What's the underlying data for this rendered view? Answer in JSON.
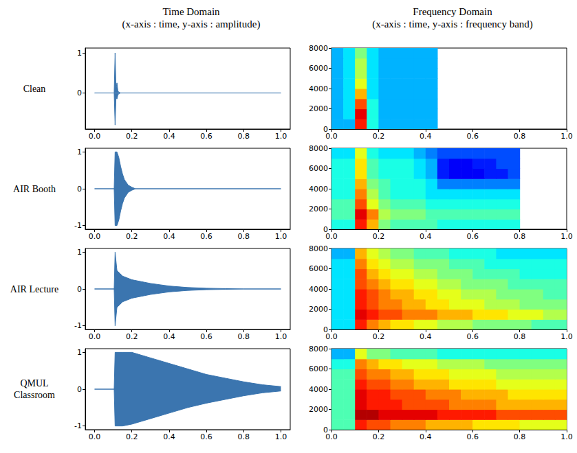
{
  "column_titles": [
    {
      "title": "Time Domain",
      "subtitle": "(x-axis : time, y-axis : amplitude)"
    },
    {
      "title": "Frequency Domain",
      "subtitle": "(x-axis : time, y-axis : frequency band)"
    }
  ],
  "row_labels": [
    "Clean",
    "AIR Booth",
    "AIR Lecture",
    "QMUL Classroom"
  ],
  "chart_data": [
    {
      "type": "line",
      "color": "#3b75af",
      "grid": false,
      "x": [
        0,
        0.1,
        0.105,
        0.11,
        0.115,
        0.12,
        0.125,
        0.13,
        0.14,
        1.0
      ],
      "envelope_upper": [
        0,
        0,
        0,
        1,
        0.1,
        0.25,
        0.05,
        0.02,
        0,
        0
      ],
      "envelope_lower": [
        0,
        0,
        0,
        -0.8,
        -0.1,
        -0.15,
        -0.05,
        -0.02,
        0,
        0
      ],
      "xlim": [
        -0.05,
        1.05
      ],
      "xticks": [
        {
          "value": 0,
          "label": "0.0"
        },
        0.2,
        0.4,
        0.6,
        0.8,
        {
          "value": 1,
          "label": "1.0"
        }
      ],
      "ylim": [
        -0.9,
        1.12
      ],
      "yticks": [
        0,
        1
      ]
    },
    {
      "type": "heatmap",
      "color": "jet",
      "grid": false,
      "zlim": [
        0,
        1
      ],
      "x_edges": [
        0,
        0.05,
        0.1,
        0.15,
        0.2,
        0.25,
        0.3,
        0.35,
        0.4,
        0.45,
        0.5,
        0.55,
        0.6,
        0.65,
        0.7,
        0.75,
        0.8,
        0.85,
        0.9,
        0.95,
        1.0
      ],
      "y_edges": [
        0,
        1000,
        2000,
        3000,
        4000,
        5000,
        6000,
        7000,
        8000
      ],
      "cells": [
        [
          0.3,
          0.3,
          0.85,
          0.4,
          0.3,
          0.3,
          0.3,
          0.3,
          0.3,
          null,
          null,
          null,
          null,
          null,
          null,
          null,
          null,
          null,
          null,
          null
        ],
        [
          0.3,
          0.35,
          0.9,
          0.4,
          0.3,
          0.3,
          0.3,
          0.3,
          0.3,
          null,
          null,
          null,
          null,
          null,
          null,
          null,
          null,
          null,
          null,
          null
        ],
        [
          0.3,
          0.35,
          0.8,
          0.4,
          0.3,
          0.3,
          0.3,
          0.3,
          0.3,
          null,
          null,
          null,
          null,
          null,
          null,
          null,
          null,
          null,
          null,
          null
        ],
        [
          0.3,
          0.35,
          0.7,
          0.35,
          0.3,
          0.3,
          0.3,
          0.3,
          0.3,
          null,
          null,
          null,
          null,
          null,
          null,
          null,
          null,
          null,
          null,
          null
        ],
        [
          0.3,
          0.35,
          0.6,
          0.35,
          0.3,
          0.3,
          0.3,
          0.3,
          0.3,
          null,
          null,
          null,
          null,
          null,
          null,
          null,
          null,
          null,
          null,
          null
        ],
        [
          0.3,
          0.35,
          0.55,
          0.35,
          0.3,
          0.3,
          0.3,
          0.3,
          0.3,
          null,
          null,
          null,
          null,
          null,
          null,
          null,
          null,
          null,
          null,
          null
        ],
        [
          0.3,
          0.35,
          0.55,
          0.35,
          0.3,
          0.3,
          0.3,
          0.3,
          0.3,
          null,
          null,
          null,
          null,
          null,
          null,
          null,
          null,
          null,
          null,
          null
        ],
        [
          0.3,
          0.35,
          0.5,
          0.35,
          0.3,
          0.3,
          0.3,
          0.3,
          0.3,
          null,
          null,
          null,
          null,
          null,
          null,
          null,
          null,
          null,
          null,
          null
        ]
      ],
      "xlim": [
        0,
        1
      ],
      "xticks": [
        {
          "value": 0,
          "label": "0.0"
        },
        0.2,
        0.4,
        0.6,
        0.8,
        {
          "value": 1,
          "label": "1.0"
        }
      ],
      "ylim": [
        0,
        8000
      ],
      "yticks": [
        0,
        2000,
        4000,
        6000,
        8000
      ]
    },
    {
      "type": "line",
      "color": "#3b75af",
      "grid": false,
      "x": [
        0,
        0.105,
        0.11,
        0.12,
        0.13,
        0.14,
        0.15,
        0.16,
        0.18,
        0.2,
        0.22,
        1.0
      ],
      "envelope_upper": [
        0,
        0,
        1,
        1,
        0.85,
        0.6,
        0.4,
        0.25,
        0.1,
        0.04,
        0,
        0
      ],
      "envelope_lower": [
        0,
        0,
        -1,
        -1,
        -0.85,
        -0.6,
        -0.4,
        -0.25,
        -0.1,
        -0.04,
        0,
        0
      ],
      "xlim": [
        -0.05,
        1.05
      ],
      "xticks": [
        {
          "value": 0,
          "label": "0.0"
        },
        0.2,
        0.4,
        0.6,
        0.8,
        {
          "value": 1,
          "label": "1.0"
        }
      ],
      "ylim": [
        -1.1,
        1.1
      ],
      "yticks": [
        -1,
        0,
        1
      ]
    },
    {
      "type": "heatmap",
      "color": "jet",
      "grid": false,
      "zlim": [
        0,
        1
      ],
      "x_edges": [
        0,
        0.05,
        0.1,
        0.15,
        0.2,
        0.25,
        0.3,
        0.35,
        0.4,
        0.45,
        0.5,
        0.55,
        0.6,
        0.65,
        0.7,
        0.75,
        0.8,
        0.85,
        0.9,
        0.95,
        1.0
      ],
      "y_edges": [
        0,
        1000,
        2000,
        3000,
        4000,
        5000,
        6000,
        7000,
        8000
      ],
      "cells": [
        [
          0.4,
          0.4,
          0.85,
          0.7,
          0.5,
          0.45,
          0.45,
          0.45,
          0.45,
          0.4,
          0.4,
          0.4,
          0.4,
          0.4,
          0.4,
          0.4,
          null,
          null,
          null,
          null
        ],
        [
          0.45,
          0.45,
          0.9,
          0.75,
          0.55,
          0.5,
          0.5,
          0.5,
          0.45,
          0.45,
          0.45,
          0.45,
          0.45,
          0.45,
          0.45,
          0.45,
          null,
          null,
          null,
          null
        ],
        [
          0.45,
          0.45,
          0.8,
          0.6,
          0.5,
          0.45,
          0.45,
          0.45,
          0.4,
          0.4,
          0.4,
          0.4,
          0.4,
          0.4,
          0.4,
          0.4,
          null,
          null,
          null,
          null
        ],
        [
          0.4,
          0.4,
          0.75,
          0.55,
          0.45,
          0.4,
          0.4,
          0.4,
          0.35,
          0.35,
          0.35,
          0.35,
          0.35,
          0.35,
          0.35,
          0.35,
          null,
          null,
          null,
          null
        ],
        [
          0.4,
          0.4,
          0.7,
          0.5,
          0.45,
          0.4,
          0.4,
          0.4,
          0.35,
          0.25,
          0.25,
          0.25,
          0.25,
          0.25,
          0.25,
          0.25,
          null,
          null,
          null,
          null
        ],
        [
          0.4,
          0.4,
          0.65,
          0.45,
          0.4,
          0.4,
          0.4,
          0.35,
          0.3,
          0.15,
          0.12,
          0.12,
          0.12,
          0.15,
          0.15,
          0.2,
          null,
          null,
          null,
          null
        ],
        [
          0.4,
          0.4,
          0.65,
          0.45,
          0.4,
          0.4,
          0.4,
          0.35,
          0.3,
          0.15,
          0.12,
          0.12,
          0.15,
          0.15,
          0.2,
          0.2,
          null,
          null,
          null,
          null
        ],
        [
          0.35,
          0.35,
          0.6,
          0.4,
          0.35,
          0.35,
          0.35,
          0.3,
          0.25,
          0.2,
          0.2,
          0.2,
          0.2,
          0.2,
          0.2,
          0.2,
          null,
          null,
          null,
          null
        ]
      ],
      "xlim": [
        0,
        1
      ],
      "xticks": [
        {
          "value": 0,
          "label": "0.0"
        },
        0.2,
        0.4,
        0.6,
        0.8,
        {
          "value": 1,
          "label": "1.0"
        }
      ],
      "ylim": [
        0,
        8000
      ],
      "yticks": [
        0,
        2000,
        4000,
        6000,
        8000
      ]
    },
    {
      "type": "line",
      "color": "#3b75af",
      "grid": false,
      "x": [
        0,
        0.105,
        0.11,
        0.12,
        0.15,
        0.2,
        0.25,
        0.3,
        0.4,
        0.5,
        0.6,
        0.7,
        0.8,
        1.0
      ],
      "envelope_upper": [
        0,
        0,
        1,
        0.5,
        0.35,
        0.25,
        0.2,
        0.15,
        0.08,
        0.04,
        0.02,
        0.01,
        0,
        0
      ],
      "envelope_lower": [
        0,
        0,
        -1,
        -0.5,
        -0.35,
        -0.25,
        -0.2,
        -0.15,
        -0.08,
        -0.04,
        -0.02,
        -0.01,
        0,
        0
      ],
      "xlim": [
        -0.05,
        1.05
      ],
      "xticks": [
        {
          "value": 0,
          "label": "0.0"
        },
        0.2,
        0.4,
        0.6,
        0.8,
        {
          "value": 1,
          "label": "1.0"
        }
      ],
      "ylim": [
        -1.1,
        1.1
      ],
      "yticks": [
        -1,
        0,
        1
      ]
    },
    {
      "type": "heatmap",
      "color": "jet",
      "grid": false,
      "zlim": [
        0,
        1
      ],
      "x_edges": [
        0,
        0.05,
        0.1,
        0.15,
        0.2,
        0.25,
        0.3,
        0.35,
        0.4,
        0.45,
        0.5,
        0.55,
        0.6,
        0.65,
        0.7,
        0.75,
        0.8,
        0.85,
        0.9,
        0.95,
        1.0
      ],
      "y_edges": [
        0,
        1000,
        2000,
        3000,
        4000,
        5000,
        6000,
        7000,
        8000
      ],
      "cells": [
        [
          0.35,
          0.35,
          0.85,
          0.75,
          0.7,
          0.65,
          0.65,
          0.6,
          0.6,
          0.55,
          0.55,
          0.55,
          0.5,
          0.5,
          0.5,
          0.5,
          0.5,
          0.45,
          0.45,
          0.45
        ],
        [
          0.35,
          0.35,
          0.9,
          0.85,
          0.8,
          0.8,
          0.75,
          0.75,
          0.75,
          0.7,
          0.7,
          0.7,
          0.65,
          0.65,
          0.65,
          0.6,
          0.6,
          0.6,
          0.55,
          0.55
        ],
        [
          0.35,
          0.35,
          0.85,
          0.8,
          0.75,
          0.75,
          0.7,
          0.7,
          0.65,
          0.65,
          0.6,
          0.6,
          0.6,
          0.55,
          0.55,
          0.55,
          0.5,
          0.5,
          0.5,
          0.5
        ],
        [
          0.35,
          0.35,
          0.85,
          0.8,
          0.75,
          0.7,
          0.7,
          0.65,
          0.65,
          0.6,
          0.6,
          0.55,
          0.55,
          0.55,
          0.5,
          0.5,
          0.5,
          0.5,
          0.45,
          0.45
        ],
        [
          0.35,
          0.35,
          0.8,
          0.75,
          0.7,
          0.65,
          0.65,
          0.6,
          0.6,
          0.55,
          0.55,
          0.5,
          0.5,
          0.5,
          0.5,
          0.45,
          0.45,
          0.45,
          0.45,
          0.45
        ],
        [
          0.35,
          0.35,
          0.8,
          0.7,
          0.65,
          0.6,
          0.6,
          0.55,
          0.55,
          0.5,
          0.5,
          0.5,
          0.45,
          0.45,
          0.45,
          0.45,
          0.4,
          0.4,
          0.4,
          0.4
        ],
        [
          0.35,
          0.35,
          0.75,
          0.65,
          0.6,
          0.55,
          0.55,
          0.5,
          0.5,
          0.5,
          0.45,
          0.45,
          0.45,
          0.4,
          0.4,
          0.4,
          0.4,
          0.4,
          0.4,
          0.4
        ],
        [
          0.3,
          0.3,
          0.7,
          0.6,
          0.55,
          0.5,
          0.5,
          0.45,
          0.45,
          0.45,
          0.4,
          0.4,
          0.4,
          0.4,
          0.35,
          0.35,
          0.35,
          0.35,
          0.35,
          0.35
        ]
      ],
      "xlim": [
        0,
        1
      ],
      "xticks": [
        {
          "value": 0,
          "label": "0.0"
        },
        0.2,
        0.4,
        0.6,
        0.8,
        {
          "value": 1,
          "label": "1.0"
        }
      ],
      "ylim": [
        0,
        8000
      ],
      "yticks": [
        0,
        2000,
        4000,
        6000,
        8000
      ]
    },
    {
      "type": "line",
      "color": "#3b75af",
      "grid": false,
      "x": [
        0,
        0.105,
        0.11,
        0.15,
        0.2,
        0.3,
        0.4,
        0.5,
        0.6,
        0.7,
        0.8,
        0.9,
        1.0
      ],
      "envelope_upper": [
        0,
        0,
        1,
        1,
        1,
        0.85,
        0.7,
        0.55,
        0.4,
        0.3,
        0.2,
        0.12,
        0.07
      ],
      "envelope_lower": [
        0,
        0,
        -1,
        -1,
        -0.95,
        -0.8,
        -0.65,
        -0.5,
        -0.38,
        -0.28,
        -0.18,
        -0.1,
        -0.05
      ],
      "xlim": [
        -0.05,
        1.05
      ],
      "xticks": [
        {
          "value": 0,
          "label": "0.0"
        },
        0.2,
        0.4,
        0.6,
        0.8,
        {
          "value": 1,
          "label": "1.0"
        }
      ],
      "ylim": [
        -1.1,
        1.1
      ],
      "yticks": [
        -1,
        0,
        1
      ]
    },
    {
      "type": "heatmap",
      "color": "jet",
      "grid": false,
      "zlim": [
        0,
        1
      ],
      "x_edges": [
        0,
        0.05,
        0.1,
        0.15,
        0.2,
        0.25,
        0.3,
        0.35,
        0.4,
        0.45,
        0.5,
        0.55,
        0.6,
        0.65,
        0.7,
        0.75,
        0.8,
        0.85,
        0.9,
        0.95,
        1.0
      ],
      "y_edges": [
        0,
        1000,
        2000,
        3000,
        4000,
        5000,
        6000,
        7000,
        8000
      ],
      "cells": [
        [
          0.45,
          0.45,
          0.85,
          0.8,
          0.8,
          0.75,
          0.75,
          0.75,
          0.7,
          0.7,
          0.7,
          0.7,
          0.65,
          0.65,
          0.65,
          0.65,
          0.6,
          0.6,
          0.6,
          0.6
        ],
        [
          0.45,
          0.45,
          0.95,
          0.95,
          0.9,
          0.9,
          0.9,
          0.9,
          0.9,
          0.85,
          0.85,
          0.85,
          0.85,
          0.85,
          0.8,
          0.8,
          0.8,
          0.8,
          0.8,
          0.8
        ],
        [
          0.45,
          0.45,
          0.9,
          0.85,
          0.85,
          0.85,
          0.8,
          0.8,
          0.8,
          0.8,
          0.75,
          0.75,
          0.75,
          0.75,
          0.7,
          0.7,
          0.7,
          0.7,
          0.7,
          0.7
        ],
        [
          0.45,
          0.45,
          0.9,
          0.85,
          0.85,
          0.8,
          0.8,
          0.8,
          0.75,
          0.75,
          0.75,
          0.7,
          0.7,
          0.7,
          0.7,
          0.65,
          0.65,
          0.65,
          0.65,
          0.65
        ],
        [
          0.45,
          0.45,
          0.85,
          0.8,
          0.8,
          0.75,
          0.75,
          0.7,
          0.7,
          0.7,
          0.65,
          0.65,
          0.65,
          0.65,
          0.6,
          0.6,
          0.6,
          0.6,
          0.6,
          0.6
        ],
        [
          0.45,
          0.45,
          0.8,
          0.75,
          0.75,
          0.7,
          0.7,
          0.65,
          0.65,
          0.65,
          0.6,
          0.6,
          0.6,
          0.6,
          0.55,
          0.55,
          0.55,
          0.55,
          0.55,
          0.55
        ],
        [
          0.4,
          0.4,
          0.75,
          0.7,
          0.65,
          0.65,
          0.6,
          0.6,
          0.6,
          0.55,
          0.55,
          0.55,
          0.55,
          0.5,
          0.5,
          0.5,
          0.5,
          0.5,
          0.5,
          0.5
        ],
        [
          0.3,
          0.3,
          0.6,
          0.5,
          0.5,
          0.45,
          0.45,
          0.45,
          0.45,
          0.4,
          0.4,
          0.4,
          0.4,
          0.4,
          0.4,
          0.4,
          0.4,
          0.4,
          0.4,
          0.4
        ]
      ],
      "xlim": [
        0,
        1
      ],
      "xticks": [
        {
          "value": 0,
          "label": "0.0"
        },
        0.2,
        0.4,
        0.6,
        0.8,
        {
          "value": 1,
          "label": "1.0"
        }
      ],
      "ylim": [
        0,
        8000
      ],
      "yticks": [
        0,
        2000,
        4000,
        6000,
        8000
      ]
    }
  ]
}
